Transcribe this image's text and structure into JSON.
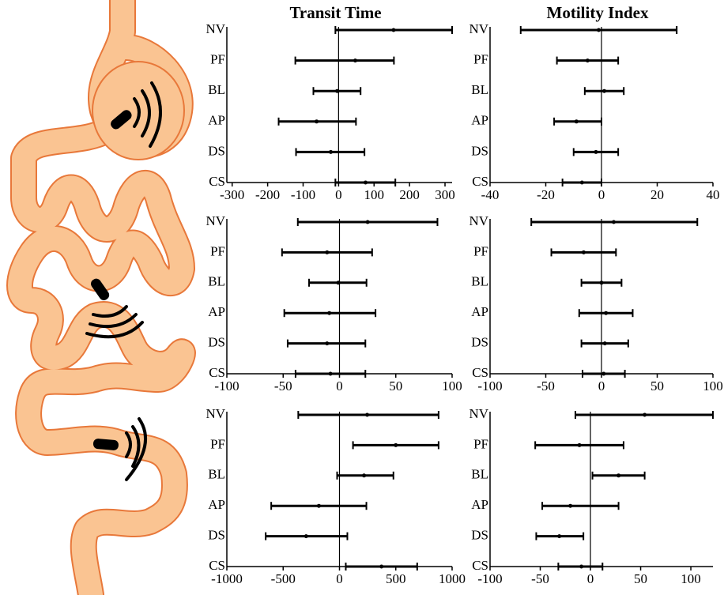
{
  "chart_data": [
    {
      "type": "errorbar",
      "title": "Transit Time",
      "categories": [
        "NV",
        "PF",
        "BL",
        "AP",
        "DS",
        "CS"
      ],
      "values": [
        155,
        47,
        -4,
        -62,
        -22,
        76
      ],
      "lower": [
        -9,
        -122,
        -71,
        -169,
        -120,
        -9
      ],
      "upper": [
        320,
        156,
        62,
        49,
        73,
        160
      ],
      "xlim": [
        -315,
        320
      ],
      "xticks": [
        -300,
        -200,
        -100,
        0,
        100,
        200,
        300
      ],
      "color": "#000000"
    },
    {
      "type": "errorbar",
      "title": "Motility Index",
      "categories": [
        "NV",
        "PF",
        "BL",
        "AP",
        "DS",
        "CS"
      ],
      "values": [
        -1,
        -5,
        1,
        -9,
        -2,
        -7
      ],
      "lower": [
        -29,
        -16,
        -6,
        -17,
        -10,
        -14
      ],
      "upper": [
        27,
        6,
        8,
        0,
        6,
        0
      ],
      "xlim": [
        -40,
        40
      ],
      "xticks": [
        -40,
        -20,
        0,
        20,
        40
      ],
      "color": "#000000"
    },
    {
      "type": "errorbar",
      "categories": [
        "NV",
        "PF",
        "BL",
        "AP",
        "DS",
        "CS"
      ],
      "values": [
        25,
        -11,
        -1,
        -9,
        -11,
        -8
      ],
      "lower": [
        -37,
        -51,
        -27,
        -49,
        -46,
        -39
      ],
      "upper": [
        87,
        29,
        24,
        32,
        23,
        23
      ],
      "xlim": [
        -100,
        100
      ],
      "xticks": [
        -100,
        -50,
        0,
        50,
        100
      ],
      "color": "#000000"
    },
    {
      "type": "errorbar",
      "categories": [
        "NV",
        "PF",
        "BL",
        "AP",
        "DS",
        "CS"
      ],
      "values": [
        11,
        -16,
        0,
        4,
        3,
        2
      ],
      "lower": [
        -63,
        -45,
        -18,
        -20,
        -18,
        -17
      ],
      "upper": [
        86,
        13,
        18,
        28,
        24,
        21
      ],
      "xlim": [
        -100,
        100
      ],
      "xticks": [
        -100,
        -50,
        0,
        50,
        100
      ],
      "color": "#000000"
    },
    {
      "type": "errorbar",
      "categories": [
        "NV",
        "PF",
        "BL",
        "AP",
        "DS",
        "CS"
      ],
      "values": [
        246,
        500,
        218,
        -183,
        -296,
        373
      ],
      "lower": [
        -366,
        120,
        -21,
        -606,
        -655,
        56
      ],
      "upper": [
        880,
        880,
        479,
        239,
        70,
        690
      ],
      "xlim": [
        -1000,
        1000
      ],
      "xticks": [
        -1000,
        -500,
        0,
        500,
        1000
      ],
      "color": "#000000"
    },
    {
      "type": "errorbar",
      "categories": [
        "NV",
        "PF",
        "BL",
        "AP",
        "DS",
        "CS"
      ],
      "values": [
        54,
        -11,
        28,
        -20,
        -31,
        -9
      ],
      "lower": [
        -15,
        -55,
        2,
        -48,
        -54,
        -32
      ],
      "upper": [
        122,
        33,
        54,
        28,
        -7,
        12
      ],
      "xlim": [
        -100,
        122
      ],
      "xticks": [
        -100,
        -50,
        0,
        50,
        100
      ],
      "color": "#000000"
    }
  ]
}
